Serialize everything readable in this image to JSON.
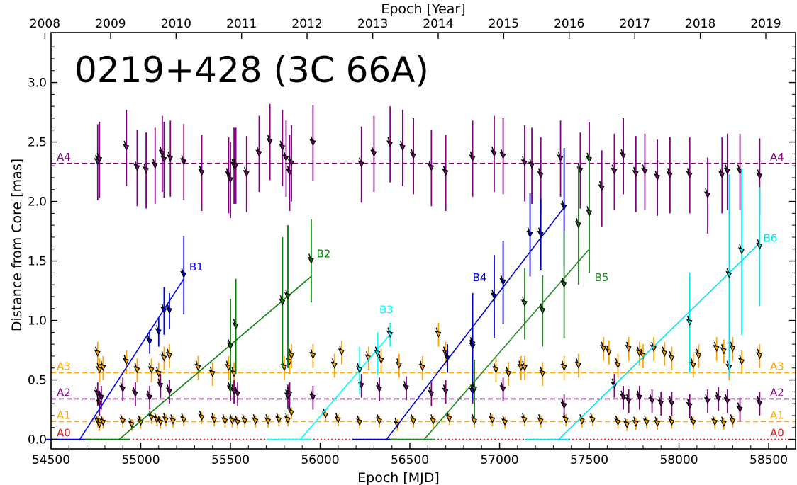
{
  "chart_data": {
    "type": "scatter",
    "title": "0219+428 (3C 66A)",
    "xlabel": "Epoch [MJD]",
    "ylabel": "Distance from Core [mas]",
    "top_xlabel": "Epoch [Year]",
    "xlim": [
      54500,
      58650
    ],
    "ylim": [
      -0.08,
      3.42
    ],
    "x_ticks": [
      54500,
      55000,
      55500,
      56000,
      56500,
      57000,
      57500,
      58000,
      58500
    ],
    "y_ticks": [
      0.0,
      0.5,
      1.0,
      1.5,
      2.0,
      2.5,
      3.0
    ],
    "x_tick_labels": [
      "54500",
      "55000",
      "55500",
      "56000",
      "56500",
      "57000",
      "57500",
      "58000",
      "58500"
    ],
    "y_tick_labels": [
      "0.0",
      "0.5",
      "1.0",
      "1.5",
      "2.0",
      "2.5",
      "3.0"
    ],
    "year_ticks": [
      {
        "label": "2008",
        "mjd": 54466
      },
      {
        "label": "2009",
        "mjd": 54832
      },
      {
        "label": "2010",
        "mjd": 55197
      },
      {
        "label": "2011",
        "mjd": 55562
      },
      {
        "label": "2012",
        "mjd": 55927
      },
      {
        "label": "2013",
        "mjd": 56293
      },
      {
        "label": "2014",
        "mjd": 56658
      },
      {
        "label": "2015",
        "mjd": 57023
      },
      {
        "label": "2016",
        "mjd": 57388
      },
      {
        "label": "2017",
        "mjd": 57754
      },
      {
        "label": "2018",
        "mjd": 58119
      },
      {
        "label": "2019",
        "mjd": 58484
      }
    ],
    "reference_lines": [
      {
        "name": "A0",
        "y": 0.0,
        "color": "#e41a1c",
        "style": "dotted"
      },
      {
        "name": "A1",
        "y": 0.15,
        "color": "#ffa500",
        "style": "dashed"
      },
      {
        "name": "A2",
        "y": 0.34,
        "color": "#800080",
        "style": "dashed"
      },
      {
        "name": "A3",
        "y": 0.56,
        "color": "#ffa500",
        "style": "dashed"
      },
      {
        "name": "A4",
        "y": 2.32,
        "color": "#800080",
        "style": "dashed"
      }
    ],
    "components": [
      {
        "name": "B1",
        "color": "#0000ff",
        "fit": [
          [
            54660,
            0.0
          ],
          [
            55240,
            1.35
          ]
        ],
        "points": [
          [
            55050,
            0.82,
            0.1
          ],
          [
            55100,
            0.9,
            0.12
          ],
          [
            55130,
            1.08,
            0.2
          ],
          [
            55160,
            1.08,
            0.15
          ],
          [
            55240,
            1.38,
            0.33
          ]
        ],
        "label_pos": [
          55270,
          1.42
        ]
      },
      {
        "name": "B2",
        "color": "#008000",
        "fit": [
          [
            54880,
            0.0
          ],
          [
            55950,
            1.37
          ]
        ],
        "points": [
          [
            55500,
            0.78,
            0.4
          ],
          [
            55530,
            0.95,
            0.4
          ],
          [
            55790,
            1.15,
            0.55
          ],
          [
            55820,
            1.2,
            0.6
          ],
          [
            55950,
            1.5,
            0.35
          ]
        ],
        "label_pos": [
          55980,
          1.53
        ]
      },
      {
        "name": "B3",
        "color": "#00ffff",
        "fit": [
          [
            55890,
            0.0
          ],
          [
            56400,
            0.9
          ]
        ],
        "points": [
          [
            56220,
            0.58,
            0.2
          ],
          [
            56320,
            0.72,
            0.18
          ],
          [
            56390,
            0.88,
            0.1
          ]
        ],
        "label_pos": [
          56330,
          1.06
        ]
      },
      {
        "name": "B4",
        "color": "#0000cc",
        "fit": [
          [
            56370,
            0.0
          ],
          [
            57370,
            1.97
          ]
        ],
        "points": [
          [
            56710,
            0.68,
            0.12
          ],
          [
            56850,
            0.78,
            0.45
          ],
          [
            56970,
            1.2,
            0.35
          ],
          [
            57020,
            1.32,
            0.35
          ],
          [
            57170,
            1.72,
            0.35
          ],
          [
            57230,
            1.72,
            0.3
          ],
          [
            57360,
            1.95,
            0.5
          ]
        ],
        "label_pos": [
          56850,
          1.33
        ]
      },
      {
        "name": "B5",
        "color": "#228b22",
        "fit": [
          [
            56580,
            0.0
          ],
          [
            57500,
            1.6
          ]
        ],
        "points": [
          [
            56860,
            0.42,
            0.25
          ],
          [
            57140,
            1.14,
            0.3
          ],
          [
            57240,
            1.08,
            0.3
          ],
          [
            57360,
            1.3,
            0.45
          ],
          [
            57440,
            1.8,
            0.5
          ],
          [
            57500,
            1.9,
            0.5
          ]
        ],
        "label_pos": [
          57530,
          1.33
        ]
      },
      {
        "name": "B6",
        "color": "#00e5ee",
        "fit": [
          [
            57330,
            0.0
          ],
          [
            58450,
            1.65
          ]
        ],
        "points": [
          [
            58060,
            0.98,
            0.42
          ],
          [
            58280,
            1.38,
            0.85
          ],
          [
            58350,
            1.58,
            0.7
          ],
          [
            58450,
            1.62,
            0.5
          ]
        ],
        "label_pos": [
          58470,
          1.66
        ]
      }
    ],
    "stationary": [
      {
        "name": "A4",
        "color": "#800080",
        "err": 0.32,
        "points": [
          [
            54760,
            2.33
          ],
          [
            54770,
            2.35
          ],
          [
            54920,
            2.45
          ],
          [
            54980,
            2.28
          ],
          [
            55030,
            2.26
          ],
          [
            55080,
            2.3
          ],
          [
            55120,
            2.4
          ],
          [
            55130,
            2.35
          ],
          [
            55165,
            2.36
          ],
          [
            55240,
            2.33
          ],
          [
            55340,
            2.24
          ],
          [
            55490,
            2.22
          ],
          [
            55500,
            2.18
          ],
          [
            55520,
            2.3
          ],
          [
            55530,
            2.3
          ],
          [
            55590,
            2.23
          ],
          [
            55660,
            2.4
          ],
          [
            55720,
            2.5
          ],
          [
            55790,
            2.45
          ],
          [
            55810,
            2.36
          ],
          [
            55830,
            2.24
          ],
          [
            55840,
            2.32
          ],
          [
            55960,
            2.49
          ],
          [
            56230,
            2.31
          ],
          [
            56300,
            2.4
          ],
          [
            56390,
            2.48
          ],
          [
            56460,
            2.45
          ],
          [
            56520,
            2.38
          ],
          [
            56620,
            2.28
          ],
          [
            56700,
            2.24
          ],
          [
            56850,
            2.36
          ],
          [
            56970,
            2.4
          ],
          [
            57020,
            2.38
          ],
          [
            57140,
            2.32
          ],
          [
            57180,
            2.3
          ],
          [
            57230,
            2.22
          ],
          [
            57340,
            2.36
          ],
          [
            57450,
            2.26
          ],
          [
            57500,
            2.35
          ],
          [
            57570,
            2.11
          ],
          [
            57640,
            2.25
          ],
          [
            57690,
            2.38
          ],
          [
            57760,
            2.23
          ],
          [
            57810,
            2.25
          ],
          [
            57880,
            2.2
          ],
          [
            57950,
            2.22
          ],
          [
            58060,
            2.22
          ],
          [
            58160,
            2.05
          ],
          [
            58240,
            2.22
          ],
          [
            58270,
            2.25
          ],
          [
            58340,
            2.25
          ],
          [
            58450,
            2.21
          ]
        ]
      },
      {
        "name": "A3",
        "color": "#ffa500",
        "err": 0.1,
        "points": [
          [
            54760,
            0.72
          ],
          [
            54770,
            0.58
          ],
          [
            54790,
            0.6
          ],
          [
            54920,
            0.65
          ],
          [
            54980,
            0.58
          ],
          [
            55060,
            0.58
          ],
          [
            55100,
            0.55
          ],
          [
            55130,
            0.68
          ],
          [
            55160,
            0.7
          ],
          [
            55320,
            0.6
          ],
          [
            55400,
            0.55
          ],
          [
            55490,
            0.6
          ],
          [
            55520,
            0.55
          ],
          [
            55800,
            0.6
          ],
          [
            55830,
            0.65
          ],
          [
            55840,
            0.7
          ],
          [
            55960,
            0.7
          ],
          [
            56080,
            0.62
          ],
          [
            56120,
            0.73
          ],
          [
            56270,
            0.68
          ],
          [
            56340,
            0.66
          ],
          [
            56440,
            0.62
          ],
          [
            56570,
            0.6
          ],
          [
            56660,
            0.88
          ],
          [
            56700,
            0.72
          ],
          [
            56850,
            0.8
          ],
          [
            56980,
            0.58
          ],
          [
            57050,
            0.55
          ],
          [
            57120,
            0.6
          ],
          [
            57140,
            0.6
          ],
          [
            57240,
            0.55
          ],
          [
            57360,
            0.6
          ],
          [
            57440,
            0.62
          ],
          [
            57580,
            0.76
          ],
          [
            57610,
            0.73
          ],
          [
            57660,
            0.62
          ],
          [
            57720,
            0.76
          ],
          [
            57780,
            0.72
          ],
          [
            57800,
            0.7
          ],
          [
            57860,
            0.76
          ],
          [
            57920,
            0.72
          ],
          [
            57960,
            0.68
          ],
          [
            58080,
            0.62
          ],
          [
            58110,
            0.7
          ],
          [
            58210,
            0.76
          ],
          [
            58250,
            0.74
          ],
          [
            58280,
            0.6
          ],
          [
            58300,
            0.76
          ],
          [
            58350,
            0.65
          ],
          [
            58450,
            0.7
          ]
        ]
      },
      {
        "name": "A2",
        "color": "#800080",
        "err": 0.1,
        "points": [
          [
            54760,
            0.38
          ],
          [
            54770,
            0.3
          ],
          [
            54780,
            0.35
          ],
          [
            54900,
            0.42
          ],
          [
            54970,
            0.38
          ],
          [
            55050,
            0.35
          ],
          [
            55110,
            0.45
          ],
          [
            55160,
            0.4
          ],
          [
            55500,
            0.42
          ],
          [
            55520,
            0.4
          ],
          [
            55540,
            0.38
          ],
          [
            55820,
            0.36
          ],
          [
            55830,
            0.38
          ],
          [
            55960,
            0.35
          ],
          [
            56230,
            0.45
          ],
          [
            56330,
            0.42
          ],
          [
            56480,
            0.43
          ],
          [
            56620,
            0.38
          ],
          [
            56700,
            0.4
          ],
          [
            56850,
            0.4
          ],
          [
            57020,
            0.42
          ],
          [
            57360,
            0.28
          ],
          [
            57640,
            0.45
          ],
          [
            57690,
            0.35
          ],
          [
            57720,
            0.32
          ],
          [
            57780,
            0.35
          ],
          [
            57850,
            0.32
          ],
          [
            57900,
            0.3
          ],
          [
            57960,
            0.3
          ],
          [
            58060,
            0.28
          ],
          [
            58160,
            0.32
          ],
          [
            58220,
            0.34
          ],
          [
            58270,
            0.32
          ],
          [
            58340,
            0.25
          ],
          [
            58450,
            0.3
          ]
        ]
      },
      {
        "name": "A1",
        "color": "#ffa500",
        "err": 0.05,
        "points": [
          [
            54760,
            0.15
          ],
          [
            54770,
            0.12
          ],
          [
            54790,
            0.14
          ],
          [
            54900,
            0.15
          ],
          [
            54950,
            0.12
          ],
          [
            55000,
            0.14
          ],
          [
            55060,
            0.18
          ],
          [
            55090,
            0.16
          ],
          [
            55110,
            0.14
          ],
          [
            55140,
            0.16
          ],
          [
            55180,
            0.15
          ],
          [
            55240,
            0.16
          ],
          [
            55340,
            0.18
          ],
          [
            55410,
            0.16
          ],
          [
            55470,
            0.15
          ],
          [
            55510,
            0.15
          ],
          [
            55540,
            0.14
          ],
          [
            55580,
            0.15
          ],
          [
            55640,
            0.15
          ],
          [
            55710,
            0.15
          ],
          [
            55770,
            0.16
          ],
          [
            55820,
            0.16
          ],
          [
            55840,
            0.22
          ],
          [
            56030,
            0.2
          ],
          [
            56100,
            0.16
          ],
          [
            56220,
            0.14
          ],
          [
            56330,
            0.15
          ],
          [
            56430,
            0.12
          ],
          [
            56520,
            0.15
          ],
          [
            56630,
            0.15
          ],
          [
            56720,
            0.17
          ],
          [
            56860,
            0.15
          ],
          [
            56960,
            0.16
          ],
          [
            57030,
            0.14
          ],
          [
            57140,
            0.16
          ],
          [
            57230,
            0.15
          ],
          [
            57370,
            0.16
          ],
          [
            57460,
            0.15
          ],
          [
            57520,
            0.16
          ],
          [
            57660,
            0.14
          ],
          [
            57710,
            0.12
          ],
          [
            57760,
            0.13
          ],
          [
            57820,
            0.14
          ],
          [
            57880,
            0.13
          ],
          [
            57960,
            0.14
          ],
          [
            58080,
            0.14
          ],
          [
            58200,
            0.14
          ],
          [
            58250,
            0.13
          ],
          [
            58300,
            0.15
          ]
        ]
      }
    ]
  }
}
